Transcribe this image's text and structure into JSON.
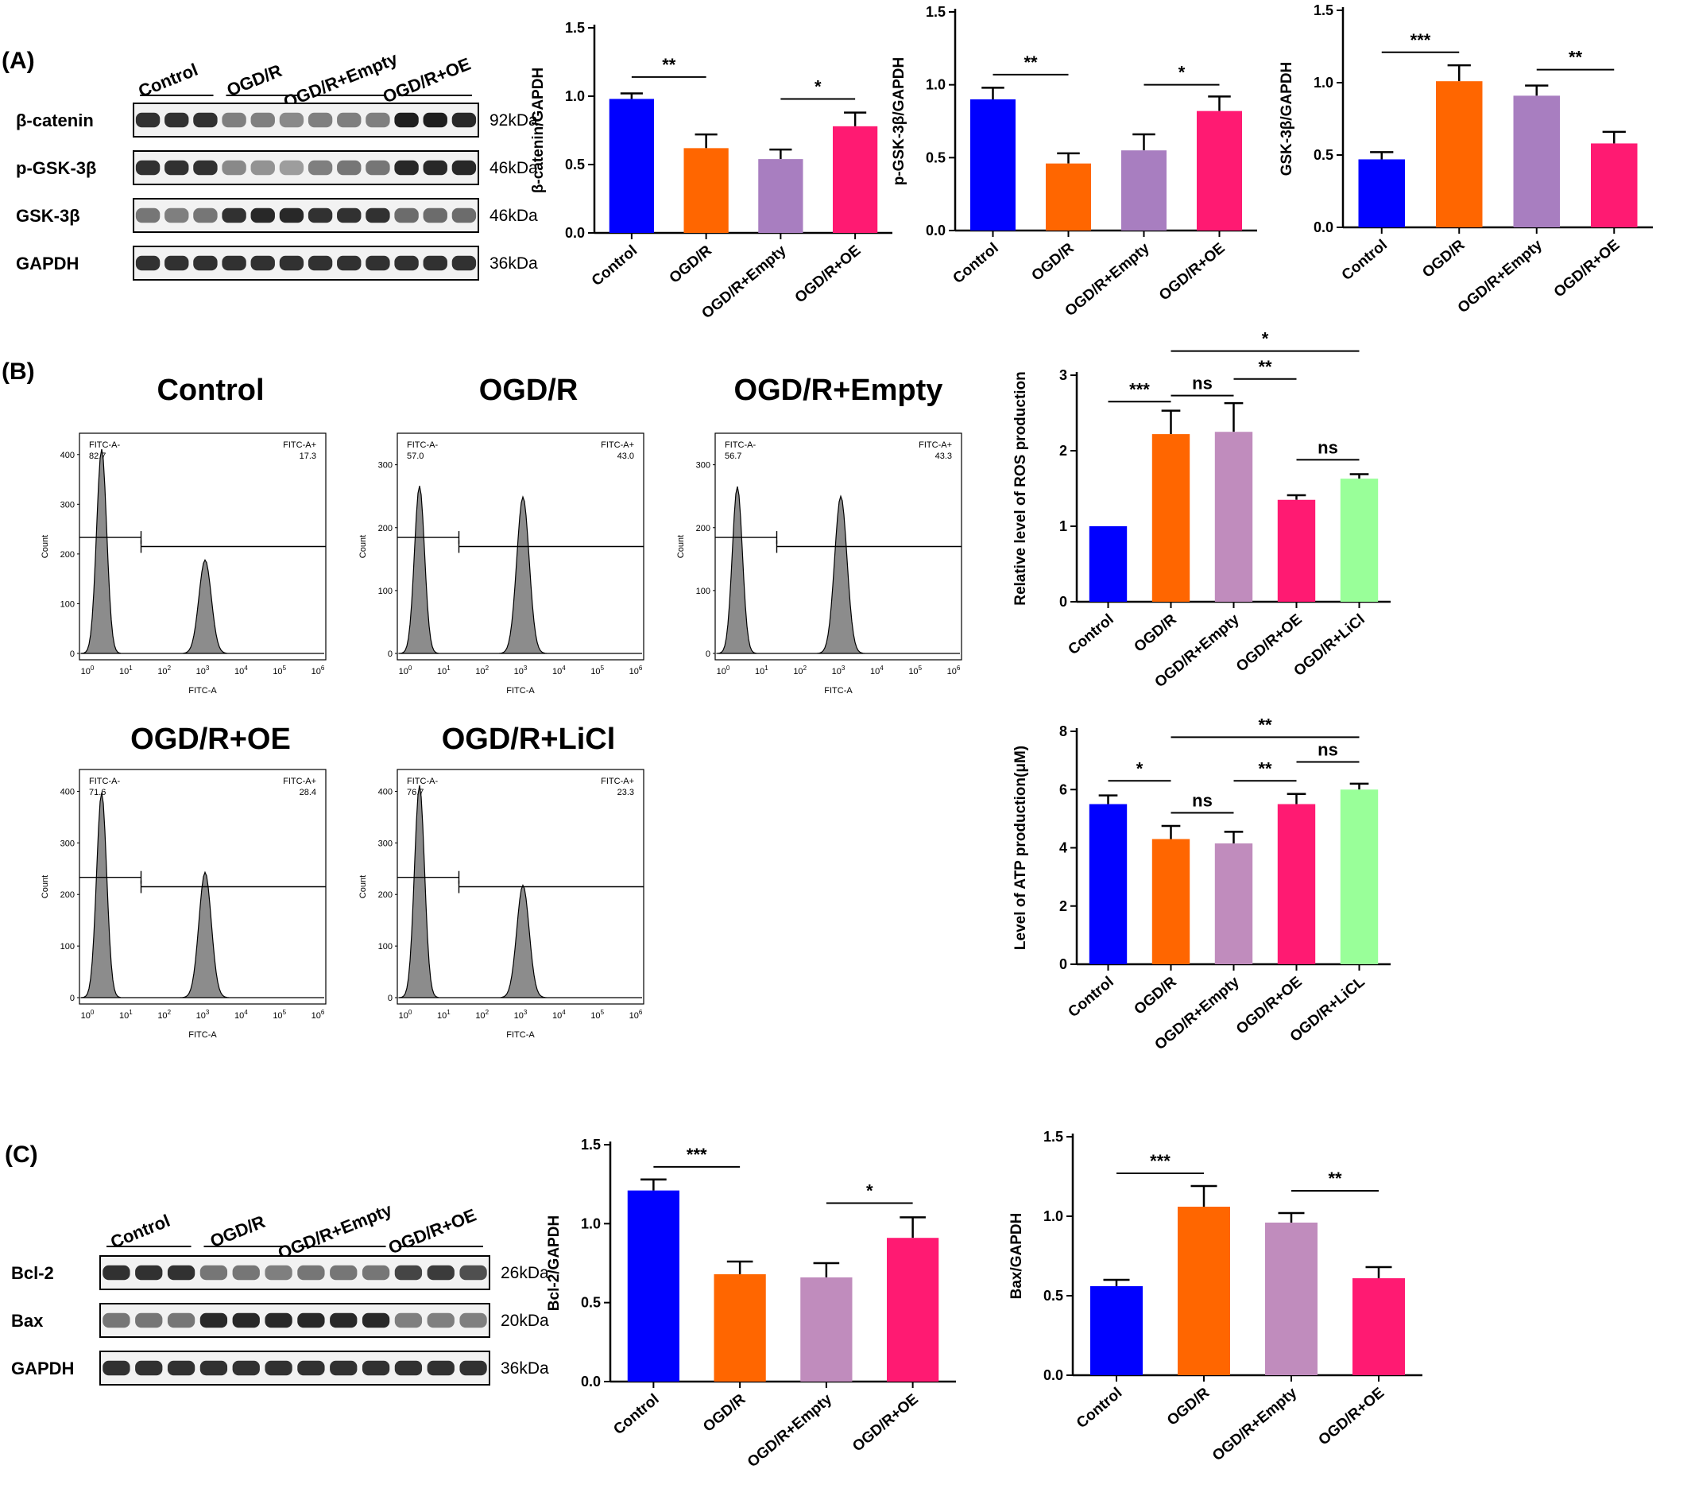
{
  "panels": {
    "A": "(A)",
    "B": "(B)",
    "C": "(C)"
  },
  "colors": {
    "control": "#0000ff",
    "ogdr": "#ff6600",
    "empty_a": "#a87ec0",
    "empty_b": "#c08cbd",
    "oe": "#ff1a72",
    "licl": "#99ff99"
  },
  "blots": {
    "A": {
      "groups": [
        "Control",
        "OGD/R",
        "OGD/R+Empty",
        "OGD/R+OE"
      ],
      "rows": [
        {
          "name": "β-catenin",
          "kda": "92kDa",
          "intensity": [
            0.85,
            0.85,
            0.85,
            0.45,
            0.45,
            0.4,
            0.45,
            0.45,
            0.45,
            0.95,
            0.95,
            0.9
          ]
        },
        {
          "name": "p-GSK-3β",
          "kda": "46kDa",
          "intensity": [
            0.85,
            0.85,
            0.85,
            0.4,
            0.35,
            0.3,
            0.45,
            0.5,
            0.5,
            0.9,
            0.9,
            0.9
          ]
        },
        {
          "name": "GSK-3β",
          "kda": "46kDa",
          "intensity": [
            0.5,
            0.45,
            0.5,
            0.85,
            0.9,
            0.9,
            0.85,
            0.85,
            0.85,
            0.55,
            0.55,
            0.55
          ]
        },
        {
          "name": "GAPDH",
          "kda": "36kDa",
          "intensity": [
            0.85,
            0.85,
            0.85,
            0.85,
            0.85,
            0.85,
            0.85,
            0.85,
            0.85,
            0.85,
            0.85,
            0.85
          ]
        }
      ]
    },
    "C": {
      "groups": [
        "Control",
        "OGD/R",
        "OGD/R+Empty",
        "OGD/R+OE"
      ],
      "rows": [
        {
          "name": "Bcl-2",
          "kda": "26kDa",
          "intensity": [
            0.85,
            0.85,
            0.85,
            0.5,
            0.5,
            0.45,
            0.5,
            0.5,
            0.5,
            0.75,
            0.8,
            0.7
          ]
        },
        {
          "name": "Bax",
          "kda": "20kDa",
          "intensity": [
            0.5,
            0.5,
            0.5,
            0.9,
            0.9,
            0.9,
            0.9,
            0.9,
            0.9,
            0.45,
            0.45,
            0.45
          ]
        },
        {
          "name": "GAPDH",
          "kda": "36kDa",
          "intensity": [
            0.85,
            0.85,
            0.85,
            0.85,
            0.85,
            0.85,
            0.85,
            0.85,
            0.85,
            0.85,
            0.85,
            0.85
          ]
        }
      ]
    }
  },
  "flow": {
    "gate_neg": "FITC-A-",
    "gate_pos": "FITC-A+",
    "x_label": "FITC-A",
    "y_label": "Count",
    "x_ticks": [
      "10^0",
      "10^1",
      "10^2",
      "10^3",
      "10^4",
      "10^5",
      "10^6"
    ],
    "plots": [
      {
        "title": "Control",
        "neg": "82.7",
        "pos": "17.3",
        "y_ticks": [
          "0",
          "100",
          "200",
          "300",
          "400"
        ]
      },
      {
        "title": "OGD/R",
        "neg": "57.0",
        "pos": "43.0",
        "y_ticks": [
          "0",
          "100",
          "200",
          "300"
        ]
      },
      {
        "title": "OGD/R+Empty",
        "neg": "56.7",
        "pos": "43.3",
        "y_ticks": [
          "0",
          "100",
          "200",
          "300"
        ]
      },
      {
        "title": "OGD/R+OE",
        "neg": "71.6",
        "pos": "28.4",
        "y_ticks": [
          "0",
          "100",
          "200",
          "300",
          "400"
        ]
      },
      {
        "title": "OGD/R+LiCl",
        "neg": "76.7",
        "pos": "23.3",
        "y_ticks": [
          "0",
          "100",
          "200",
          "300",
          "400"
        ]
      }
    ]
  },
  "chart_data": [
    {
      "type": "bar",
      "id": "A1",
      "categories": [
        "Control",
        "OGD/R",
        "OGD/R+Empty",
        "OGD/R+OE"
      ],
      "values": [
        0.98,
        0.62,
        0.54,
        0.78
      ],
      "errors": [
        0.04,
        0.1,
        0.07,
        0.1
      ],
      "ylabel": "β-catenin/GAPDH",
      "ylim": [
        0,
        1.5
      ],
      "yticks": [
        "0.0",
        "0.5",
        "1.0",
        "1.5"
      ],
      "colors": [
        "#0000ff",
        "#ff6600",
        "#a87ec0",
        "#ff1a72"
      ],
      "annotations": [
        {
          "from": 0,
          "to": 1,
          "label": "**",
          "level": 1.14
        },
        {
          "from": 2,
          "to": 3,
          "label": "*",
          "level": 0.98
        }
      ]
    },
    {
      "type": "bar",
      "id": "A2",
      "categories": [
        "Control",
        "OGD/R",
        "OGD/R+Empty",
        "OGD/R+OE"
      ],
      "values": [
        0.9,
        0.46,
        0.55,
        0.82
      ],
      "errors": [
        0.08,
        0.07,
        0.11,
        0.1
      ],
      "ylabel": "p-GSK-3β/GAPDH",
      "ylim": [
        0,
        1.5
      ],
      "yticks": [
        "0.0",
        "0.5",
        "1.0",
        "1.5"
      ],
      "colors": [
        "#0000ff",
        "#ff6600",
        "#a87ec0",
        "#ff1a72"
      ],
      "annotations": [
        {
          "from": 0,
          "to": 1,
          "label": "**",
          "level": 1.07
        },
        {
          "from": 2,
          "to": 3,
          "label": "*",
          "level": 1.0
        }
      ]
    },
    {
      "type": "bar",
      "id": "A3",
      "categories": [
        "Control",
        "OGD/R",
        "OGD/R+Empty",
        "OGD/R+OE"
      ],
      "values": [
        0.47,
        1.01,
        0.91,
        0.58
      ],
      "errors": [
        0.05,
        0.11,
        0.07,
        0.08
      ],
      "ylabel": "GSK-3β/GAPDH",
      "ylim": [
        0,
        1.5
      ],
      "yticks": [
        "0.0",
        "0.5",
        "1.0",
        "1.5"
      ],
      "colors": [
        "#0000ff",
        "#ff6600",
        "#a87ec0",
        "#ff1a72"
      ],
      "annotations": [
        {
          "from": 0,
          "to": 1,
          "label": "***",
          "level": 1.21
        },
        {
          "from": 2,
          "to": 3,
          "label": "**",
          "level": 1.09
        }
      ]
    },
    {
      "type": "bar",
      "id": "B1",
      "categories": [
        "Control",
        "OGD/R",
        "OGD/R+Empty",
        "OGD/R+OE",
        "OGD/R+LiCl"
      ],
      "values": [
        1.0,
        2.22,
        2.25,
        1.35,
        1.63
      ],
      "errors": [
        0.0,
        0.31,
        0.38,
        0.06,
        0.06
      ],
      "ylabel": "Relative level of ROS production",
      "ylim": [
        0,
        3
      ],
      "yticks": [
        "0",
        "1",
        "2",
        "3"
      ],
      "colors": [
        "#0000ff",
        "#ff6600",
        "#c08cbd",
        "#ff1a72",
        "#99ff99"
      ],
      "annotations": [
        {
          "from": 0,
          "to": 1,
          "label": "***",
          "level": 2.65
        },
        {
          "from": 1,
          "to": 2,
          "label": "ns",
          "level": 2.73
        },
        {
          "from": 2,
          "to": 3,
          "label": "**",
          "level": 2.95
        },
        {
          "from": 1,
          "to": 4,
          "label": "*",
          "level": 3.32
        },
        {
          "from": 3,
          "to": 4,
          "label": "ns",
          "level": 1.88
        }
      ]
    },
    {
      "type": "bar",
      "id": "B2",
      "categories": [
        "Control",
        "OGD/R",
        "OGD/R+Empty",
        "OGD/R+OE",
        "OGD/R+LiCL"
      ],
      "values": [
        5.5,
        4.3,
        4.15,
        5.5,
        6.0
      ],
      "errors": [
        0.3,
        0.45,
        0.4,
        0.35,
        0.2
      ],
      "ylabel": "Level of ATP production(μM)",
      "ylim": [
        0,
        8
      ],
      "yticks": [
        "0",
        "2",
        "4",
        "6",
        "8"
      ],
      "colors": [
        "#0000ff",
        "#ff6600",
        "#c08cbd",
        "#ff1a72",
        "#99ff99"
      ],
      "annotations": [
        {
          "from": 0,
          "to": 1,
          "label": "*",
          "level": 6.3
        },
        {
          "from": 1,
          "to": 2,
          "label": "ns",
          "level": 5.2
        },
        {
          "from": 2,
          "to": 3,
          "label": "**",
          "level": 6.3
        },
        {
          "from": 3,
          "to": 4,
          "label": "ns",
          "level": 6.95
        },
        {
          "from": 1,
          "to": 4,
          "label": "**",
          "level": 7.8
        }
      ]
    },
    {
      "type": "bar",
      "id": "C1",
      "categories": [
        "Control",
        "OGD/R",
        "OGD/R+Empty",
        "OGD/R+OE"
      ],
      "values": [
        1.21,
        0.68,
        0.66,
        0.91
      ],
      "errors": [
        0.07,
        0.08,
        0.09,
        0.13
      ],
      "ylabel": "Bcl-2/GAPDH",
      "ylim": [
        0,
        1.5
      ],
      "yticks": [
        "0.0",
        "0.5",
        "1.0",
        "1.5"
      ],
      "colors": [
        "#0000ff",
        "#ff6600",
        "#c08cbd",
        "#ff1a72"
      ],
      "annotations": [
        {
          "from": 0,
          "to": 1,
          "label": "***",
          "level": 1.36
        },
        {
          "from": 2,
          "to": 3,
          "label": "*",
          "level": 1.13
        }
      ]
    },
    {
      "type": "bar",
      "id": "C2",
      "categories": [
        "Control",
        "OGD/R",
        "OGD/R+Empty",
        "OGD/R+OE"
      ],
      "values": [
        0.56,
        1.06,
        0.96,
        0.61
      ],
      "errors": [
        0.04,
        0.13,
        0.06,
        0.07
      ],
      "ylabel": "Bax/GAPDH",
      "ylim": [
        0,
        1.5
      ],
      "yticks": [
        "0.0",
        "0.5",
        "1.0",
        "1.5"
      ],
      "colors": [
        "#0000ff",
        "#ff6600",
        "#c08cbd",
        "#ff1a72"
      ],
      "annotations": [
        {
          "from": 0,
          "to": 1,
          "label": "***",
          "level": 1.27
        },
        {
          "from": 2,
          "to": 3,
          "label": "**",
          "level": 1.16
        }
      ]
    }
  ]
}
